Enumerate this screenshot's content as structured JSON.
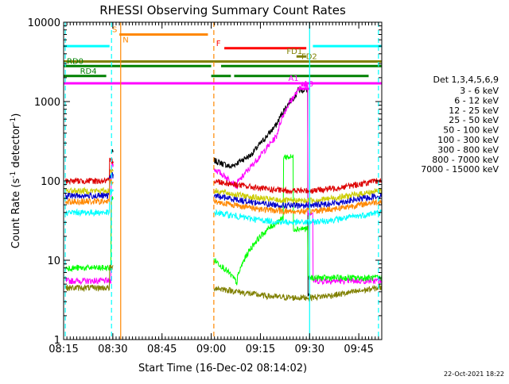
{
  "chart_data": {
    "type": "line",
    "title": "RHESSI Observing Summary Count Rates",
    "xlabel": "Start Time (16-Dec-02 08:14:02)",
    "ylabel_main": "Count Rate (s",
    "ylabel_sup1": "-1",
    "ylabel_mid": " detector",
    "ylabel_sup2": "-1",
    "ylabel_end": ")",
    "footer": "22-Oct-2021 18:22",
    "legend_title": "Det 1,3,4,5,6,9",
    "x_axis_minutes": [
      495,
      592
    ],
    "y_scale": "log",
    "ylim": [
      1,
      10000
    ],
    "x_ticks": [
      {
        "label": "08:15",
        "minute": 495
      },
      {
        "label": "08:30",
        "minute": 510
      },
      {
        "label": "08:45",
        "minute": 525
      },
      {
        "label": "09:00",
        "minute": 540
      },
      {
        "label": "09:15",
        "minute": 555
      },
      {
        "label": "09:30",
        "minute": 570
      },
      {
        "label": "09:45",
        "minute": 585
      }
    ],
    "y_ticks": [
      {
        "label": "1",
        "value": 1
      },
      {
        "label": "10",
        "value": 10
      },
      {
        "label": "100",
        "value": 100
      },
      {
        "label": "1000",
        "value": 1000
      },
      {
        "label": "10000",
        "value": 10000
      }
    ],
    "series": [
      {
        "name": "3 - 6 keV",
        "color": "#000000"
      },
      {
        "name": "6 - 12 keV",
        "color": "#ff00ff"
      },
      {
        "name": "12 - 25 keV",
        "color": "#00ff00"
      },
      {
        "name": "25 - 50 keV",
        "color": "#00ffff"
      },
      {
        "name": "50 - 100 keV",
        "color": "#cccc00"
      },
      {
        "name": "100 - 300 keV",
        "color": "#dd0000"
      },
      {
        "name": "300 - 800 keV",
        "color": "#0000cc"
      },
      {
        "name": "800 - 7000 keV",
        "color": "#ff8800"
      },
      {
        "name": "7000 - 15000 keV",
        "color": "#808000"
      }
    ],
    "flag_bars": [
      {
        "label": "",
        "color": "#00ffff",
        "y": 5000,
        "segments": [
          [
            495,
            509
          ],
          [
            571,
            592
          ]
        ]
      },
      {
        "label": "S",
        "color": "#ff8800",
        "y": 7000,
        "segments": [
          [
            512,
            539
          ]
        ]
      },
      {
        "label": "N",
        "color": "#ff8800",
        "y": 5200,
        "segments": []
      },
      {
        "label": "F",
        "color": "#ff0000",
        "y": 4700,
        "segments": [
          [
            544,
            569
          ]
        ]
      },
      {
        "label": "FD1",
        "color": "#808000",
        "y": 3700,
        "segments": [
          [
            566,
            569
          ]
        ]
      },
      {
        "label": "FD2",
        "color": "#808000",
        "y": 3200,
        "segments": [
          [
            495,
            592
          ]
        ]
      },
      {
        "label": "RD0",
        "color": "#008000",
        "y": 2800,
        "segments": [
          [
            495,
            540
          ],
          [
            543,
            592
          ]
        ]
      },
      {
        "label": "RD4",
        "color": "#008000",
        "y": 2100,
        "segments": [
          [
            495,
            508
          ],
          [
            540,
            546
          ],
          [
            547,
            588
          ]
        ]
      },
      {
        "label": "A1",
        "color": "#ff00ff",
        "y": 1700,
        "segments": [
          [
            495,
            592
          ]
        ]
      },
      {
        "label": "A0",
        "color": "#ff00ff",
        "y": 1450,
        "segments": [
          [
            567,
            570
          ]
        ]
      }
    ],
    "vertical_lines": [
      {
        "minute": 495.5,
        "color": "#00ffff",
        "style": "dashed"
      },
      {
        "minute": 509.6,
        "color": "#00ffff",
        "style": "dashed"
      },
      {
        "minute": 512.4,
        "color": "#ff8800",
        "style": "solid"
      },
      {
        "minute": 540.8,
        "color": "#ff8800",
        "style": "dashed"
      },
      {
        "minute": 570.0,
        "color": "#00ffff",
        "style": "solid"
      },
      {
        "minute": 591.0,
        "color": "#00ffff",
        "style": "dashed"
      }
    ]
  }
}
